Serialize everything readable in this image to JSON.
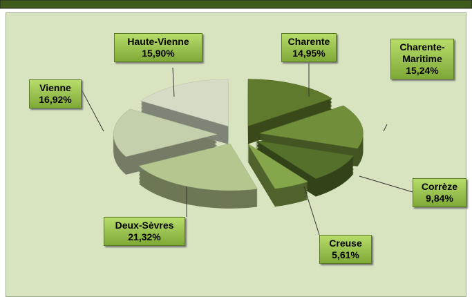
{
  "chart_data": {
    "type": "pie",
    "categories": [
      "Charente",
      "Charente-Maritime",
      "Corrèze",
      "Creuse",
      "Deux-Sèvres",
      "Vienne",
      "Haute-Vienne"
    ],
    "values": [
      14.95,
      15.24,
      9.84,
      5.61,
      21.32,
      16.92,
      15.9
    ],
    "value_labels": [
      "14,95%",
      "15,24%",
      "9,84%",
      "5,61%",
      "21,32%",
      "16,92%",
      "15,90%"
    ],
    "colors": [
      "#5f7a2c",
      "#718f3a",
      "#55702a",
      "#86a64c",
      "#b4c78f",
      "#c3d0ab",
      "#d5dcc6"
    ]
  }
}
